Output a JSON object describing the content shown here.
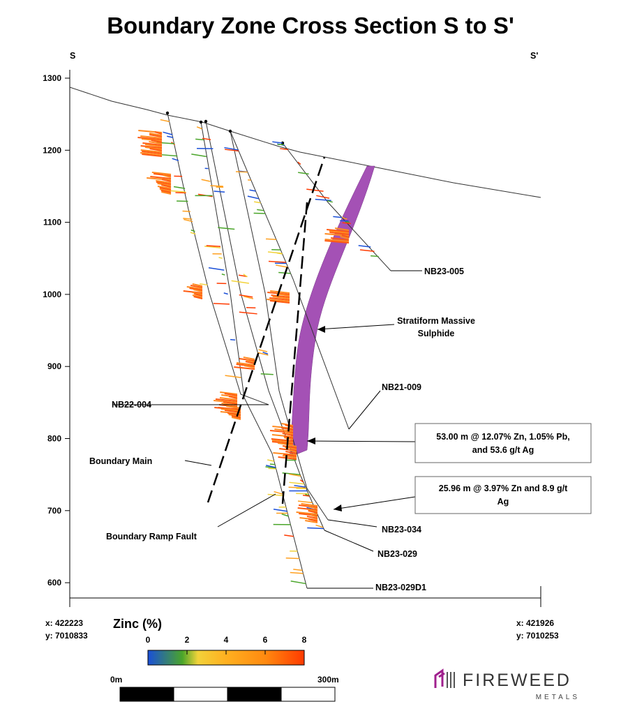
{
  "title": "Boundary Zone Cross Section S to S'",
  "section_start": "S",
  "section_end": "S'",
  "elevation_ticks": [
    "1300",
    "1200",
    "1100",
    "1000",
    "900",
    "800",
    "700",
    "600"
  ],
  "left_coords": {
    "x": "x: 422223",
    "y": "y: 7010833"
  },
  "right_coords": {
    "x": "x: 421926",
    "y": "y: 7010253"
  },
  "drill_holes": [
    "NB23-005",
    "NB21-009",
    "NB22-004",
    "NB23-034",
    "NB23-029",
    "NB23-029D1"
  ],
  "annotations": {
    "stratiform": [
      "Stratiform Massive",
      "Sulphide"
    ],
    "boundary_main": "Boundary Main",
    "ramp_fault": "Boundary Ramp Fault",
    "intercept1": [
      "53.00 m @ 12.07% Zn, 1.05% Pb,",
      "and 53.6 g/t Ag"
    ],
    "intercept2": [
      "25.96 m @ 3.97% Zn and 8.9 g/t",
      "Ag"
    ]
  },
  "legend": {
    "title": "Zinc (%)",
    "ticks": [
      "0",
      "2",
      "4",
      "6",
      "8"
    ],
    "colors": [
      "#1a4fd8",
      "#4aa52a",
      "#f2d23a",
      "#ffa020",
      "#ff3a00"
    ]
  },
  "scale": {
    "start": "0m",
    "end": "300m"
  },
  "logo": {
    "name": "FIREWEED",
    "sub": "METALS",
    "color": "#a0208e"
  },
  "colors": {
    "sulphide": "#a451b5",
    "assay": "#ff5a10"
  }
}
